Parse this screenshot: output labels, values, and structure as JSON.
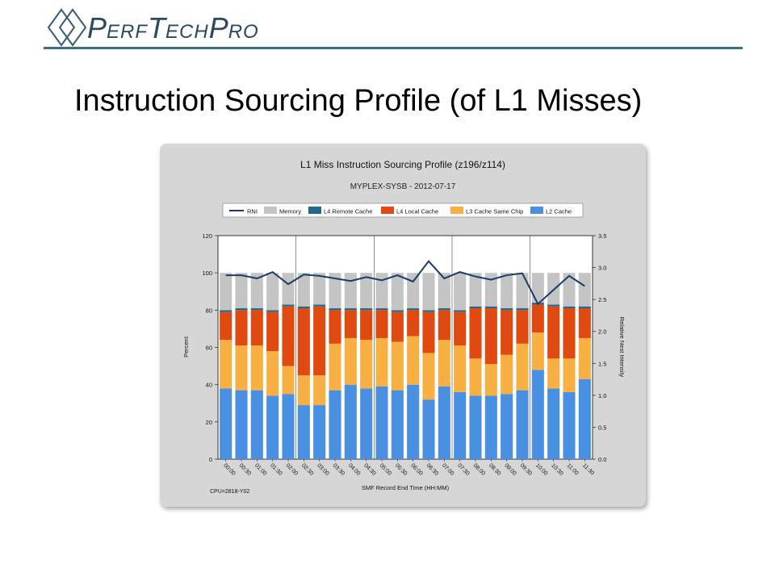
{
  "brand": {
    "name_parts": [
      "P",
      "ERF",
      "T",
      "ECH",
      "P",
      "RO"
    ],
    "logo_icon": "double-diamond-icon"
  },
  "slide": {
    "title": "Instruction Sourcing Profile (of L1 Misses)"
  },
  "chart_data": {
    "type": "bar",
    "stacked": true,
    "title": "L1 Miss Instruction Sourcing Profile (z196/z114)",
    "subtitle": "MYPLEX-SYSB - 2012-07-17",
    "xlabel": "SMF Record End Time (HH:MM)",
    "ylabel": "Percent",
    "y2label": "Relative Nest Intensity",
    "ylim": [
      0,
      120
    ],
    "y2lim": [
      0,
      3.5
    ],
    "yticks": [
      "0",
      "20",
      "40",
      "60",
      "80",
      "100",
      "120"
    ],
    "y2ticks": [
      "0.0",
      "0.5",
      "1.0",
      "1.5",
      "2.0",
      "2.5",
      "3.0",
      "3.5"
    ],
    "footnote": "CPU=2818-Y02",
    "legend_position": "top",
    "legend": [
      "RNI",
      "Memory",
      "L4 Remote Cache",
      "L4 Local Cache",
      "L3 Cache Same Chip",
      "L2 Cache"
    ],
    "categories": [
      "00:00",
      "00:30",
      "01:00",
      "01:30",
      "02:00",
      "02:30",
      "03:00",
      "03:30",
      "04:00",
      "04:30",
      "05:00",
      "05:30",
      "06:00",
      "06:30",
      "07:00",
      "07:30",
      "08:00",
      "08:30",
      "09:00",
      "09:30",
      "10:00",
      "10:30",
      "11:00",
      "11:30"
    ],
    "series": [
      {
        "name": "L2 Cache",
        "color": "#4a90e2",
        "values": [
          38,
          37,
          37,
          34,
          35,
          29,
          29,
          37,
          40,
          38,
          39,
          37,
          40,
          32,
          39,
          36,
          34,
          34,
          35,
          37,
          48,
          38,
          36,
          43
        ]
      },
      {
        "name": "L3 Cache Same Chip",
        "color": "#f9b042",
        "values": [
          26,
          24,
          24,
          24,
          15,
          16,
          16,
          25,
          25,
          26,
          26,
          26,
          26,
          25,
          25,
          25,
          20,
          17,
          21,
          25,
          20,
          16,
          18,
          22
        ]
      },
      {
        "name": "L4 Local Cache",
        "color": "#e04a10",
        "values": [
          15,
          19,
          19,
          21,
          32,
          36,
          37,
          18,
          15,
          16,
          15,
          16,
          14,
          22,
          16,
          18,
          27,
          30,
          24,
          18,
          15,
          28,
          27,
          16
        ]
      },
      {
        "name": "L4 Remote Cache",
        "color": "#1f6b8a",
        "values": [
          1,
          1,
          1,
          1,
          1,
          1,
          1,
          1,
          1,
          1,
          1,
          1,
          1,
          1,
          1,
          1,
          1,
          1,
          1,
          1,
          1,
          1,
          1,
          1
        ]
      },
      {
        "name": "Memory",
        "color": "#c4c4c4",
        "values": [
          20,
          19,
          19,
          20,
          17,
          18,
          17,
          19,
          19,
          19,
          19,
          20,
          19,
          20,
          19,
          20,
          18,
          18,
          19,
          19,
          16,
          17,
          18,
          18
        ]
      }
    ],
    "line": {
      "name": "RNI",
      "color": "#1a3a6b",
      "axis": "y2",
      "values": [
        2.88,
        2.88,
        2.83,
        2.93,
        2.74,
        2.89,
        2.87,
        2.83,
        2.79,
        2.85,
        2.8,
        2.88,
        2.78,
        3.1,
        2.83,
        2.93,
        2.86,
        2.81,
        2.88,
        2.91,
        2.43,
        2.65,
        2.87,
        2.71
      ]
    }
  }
}
